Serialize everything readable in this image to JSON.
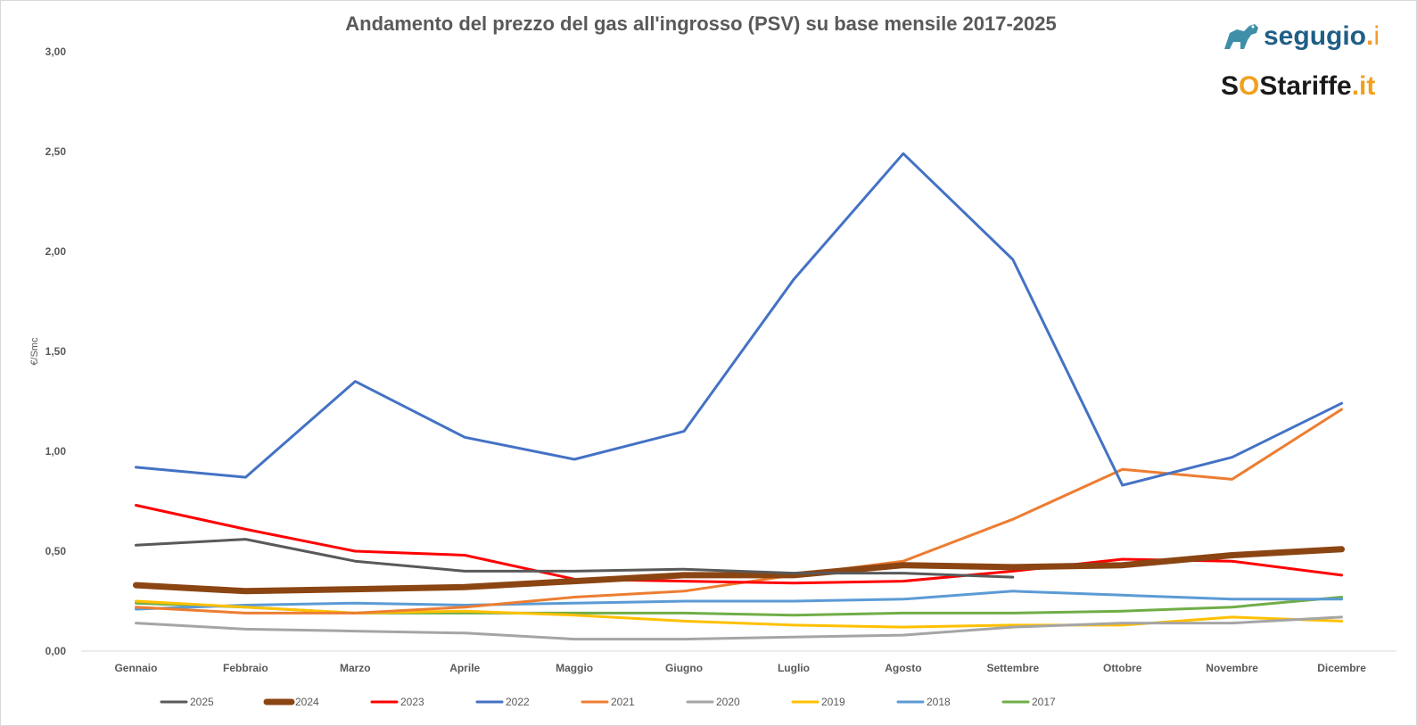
{
  "logos": {
    "segugio": {
      "name": "segugio",
      "suffix": ".it"
    },
    "sostariffe": {
      "s1": "S",
      "o": "O",
      "name": "Stariffe",
      "suffix": ".it"
    }
  },
  "chart_data": {
    "type": "line",
    "title": "Andamento del prezzo del gas all'ingrosso (PSV) su base mensile 2017-2025",
    "xlabel": "",
    "ylabel": "€/Smc",
    "ylim": [
      0,
      3
    ],
    "yticks": [
      "0,00",
      "0,50",
      "1,00",
      "1,50",
      "2,00",
      "2,50",
      "3,00"
    ],
    "ytick_values": [
      0,
      0.5,
      1.0,
      1.5,
      2.0,
      2.5,
      3.0
    ],
    "categories": [
      "Gennaio",
      "Febbraio",
      "Marzo",
      "Aprile",
      "Maggio",
      "Giugno",
      "Luglio",
      "Agosto",
      "Settembre",
      "Ottobre",
      "Novembre",
      "Dicembre"
    ],
    "legend_position": "bottom",
    "grid": false,
    "series": [
      {
        "name": "2025",
        "color": "#595959",
        "width": 3,
        "values": [
          0.53,
          0.56,
          0.45,
          0.4,
          0.4,
          0.41,
          0.39,
          0.39,
          0.37,
          null,
          null,
          null
        ]
      },
      {
        "name": "2024",
        "color": "#8b4513",
        "width": 7,
        "values": [
          0.33,
          0.3,
          0.31,
          0.32,
          0.35,
          0.38,
          0.38,
          0.43,
          0.42,
          0.43,
          0.48,
          0.51
        ]
      },
      {
        "name": "2023",
        "color": "#ff0000",
        "width": 3,
        "values": [
          0.73,
          0.61,
          0.5,
          0.48,
          0.36,
          0.35,
          0.34,
          0.35,
          0.4,
          0.46,
          0.45,
          0.38
        ]
      },
      {
        "name": "2022",
        "color": "#4472c4",
        "width": 3,
        "values": [
          0.92,
          0.87,
          1.35,
          1.07,
          0.96,
          1.1,
          1.86,
          2.49,
          1.96,
          0.83,
          0.97,
          1.24
        ]
      },
      {
        "name": "2021",
        "color": "#ed7d31",
        "width": 3,
        "values": [
          0.22,
          0.19,
          0.19,
          0.22,
          0.27,
          0.3,
          0.38,
          0.45,
          0.66,
          0.91,
          0.86,
          1.21
        ]
      },
      {
        "name": "2020",
        "color": "#a5a5a5",
        "width": 3,
        "values": [
          0.14,
          0.11,
          0.1,
          0.09,
          0.06,
          0.06,
          0.07,
          0.08,
          0.12,
          0.14,
          0.14,
          0.17
        ]
      },
      {
        "name": "2019",
        "color": "#ffc000",
        "width": 3,
        "values": [
          0.25,
          0.22,
          0.19,
          0.2,
          0.18,
          0.15,
          0.13,
          0.12,
          0.13,
          0.13,
          0.17,
          0.15
        ]
      },
      {
        "name": "2018",
        "color": "#5b9bd5",
        "width": 3,
        "values": [
          0.21,
          0.23,
          0.24,
          0.23,
          0.24,
          0.25,
          0.25,
          0.26,
          0.3,
          0.28,
          0.26,
          0.26
        ]
      },
      {
        "name": "2017",
        "color": "#70ad47",
        "width": 3,
        "values": [
          0.24,
          0.22,
          0.19,
          0.19,
          0.19,
          0.19,
          0.18,
          0.19,
          0.19,
          0.2,
          0.22,
          0.27
        ]
      }
    ]
  }
}
